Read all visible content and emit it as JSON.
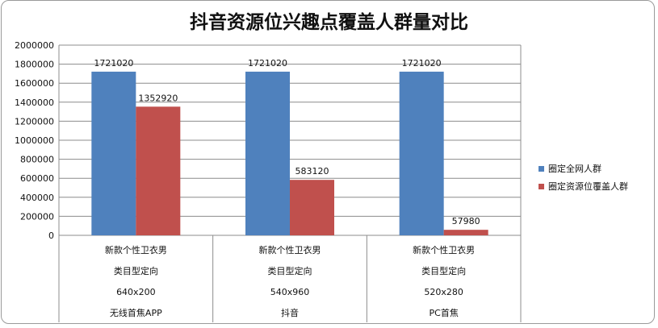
{
  "chart_data": {
    "type": "bar",
    "title": "抖音资源位兴趣点覆盖人群量对比",
    "categories": [
      [
        "新款个性卫衣男",
        "类目型定向",
        "640x200",
        "无线首焦APP"
      ],
      [
        "新款个性卫衣男",
        "类目型定向",
        "540x960",
        "抖音"
      ],
      [
        "新款个性卫衣男",
        "类目型定向",
        "520x280",
        "PC首焦"
      ]
    ],
    "series": [
      {
        "name": "圈定全网人群",
        "values": [
          1721020,
          1721020,
          1721020
        ],
        "color": "#4f81bd"
      },
      {
        "name": "圈定资源位覆盖人群",
        "values": [
          1352920,
          583120,
          57980
        ],
        "color": "#c0504d"
      }
    ],
    "y_ticks": [
      "2000000",
      "1800000",
      "1600000",
      "1400000",
      "1200000",
      "1000000",
      "800000",
      "600000",
      "400000",
      "200000",
      "0"
    ],
    "ylim": [
      0,
      2000000
    ],
    "grid": true,
    "legend_position": "right"
  }
}
